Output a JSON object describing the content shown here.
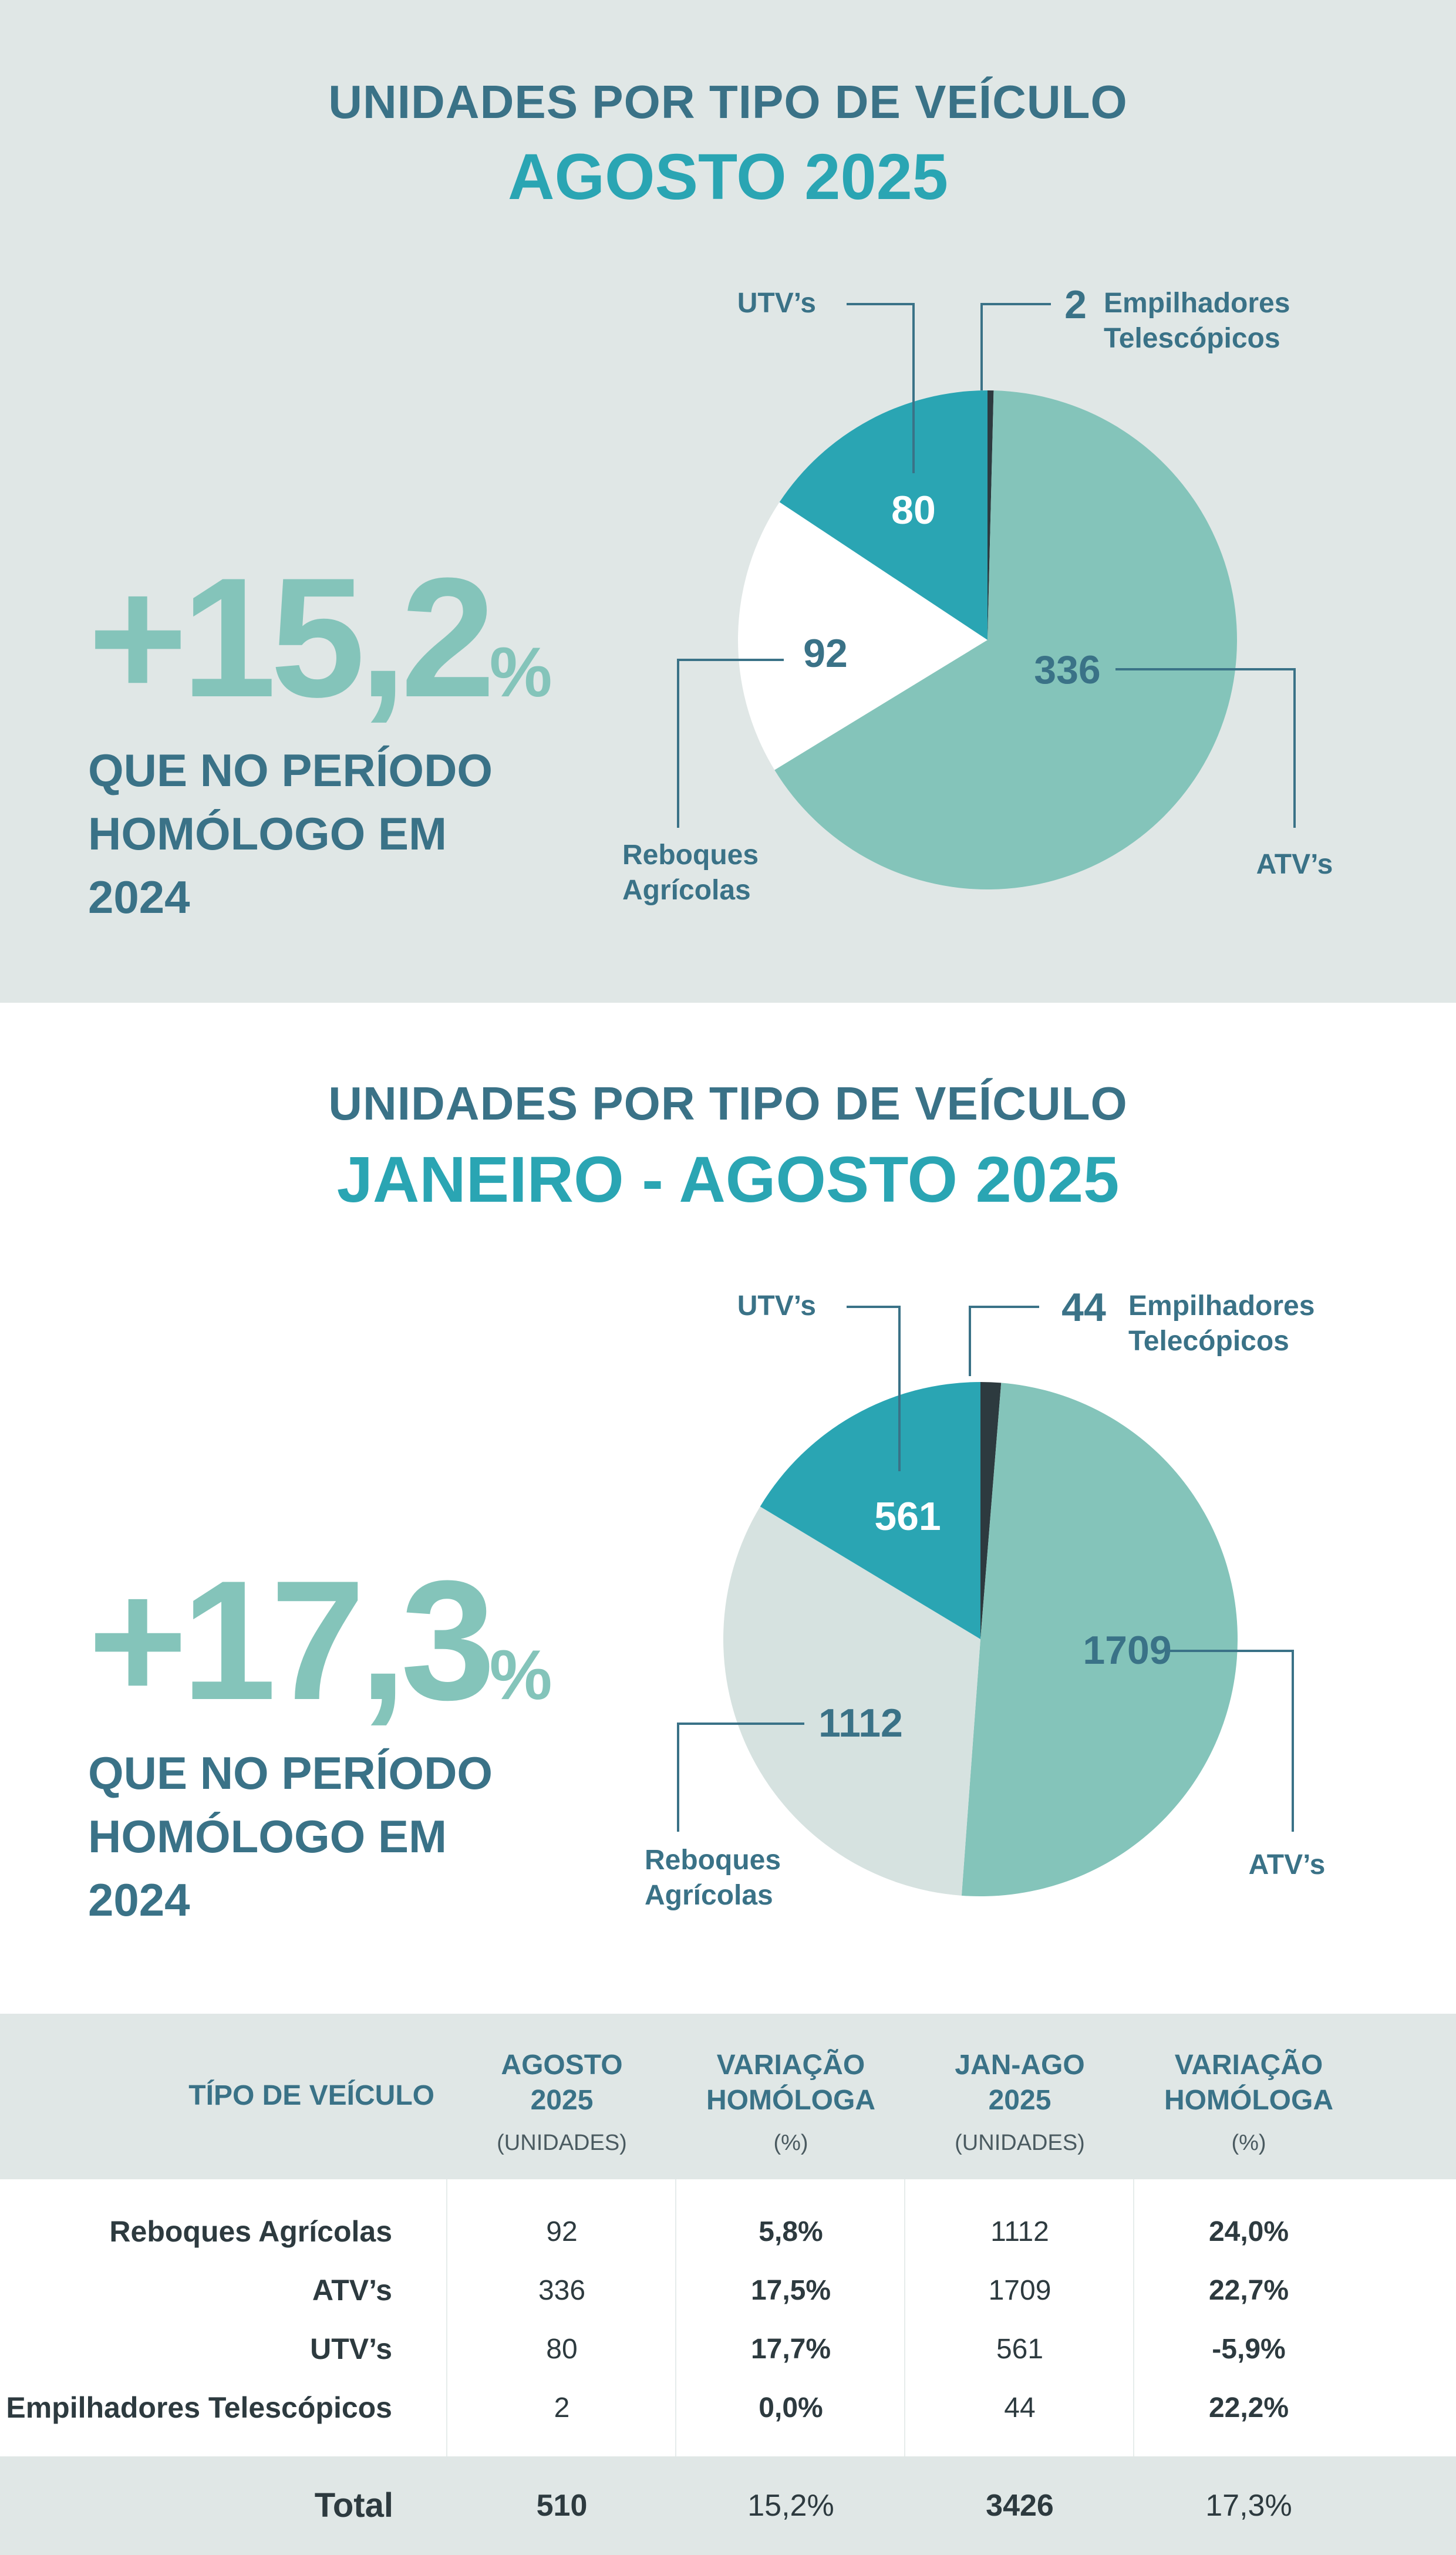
{
  "section1": {
    "title_line1": "UNIDADES POR TIPO DE VEÍCULO",
    "title_line2": "AGOSTO 2025",
    "growth_number": "+15,2",
    "growth_sign": "%",
    "growth_caption_l1": "QUE NO PERÍODO",
    "growth_caption_l2": "HOMÓLOGO EM",
    "growth_caption_l3": "2024"
  },
  "section2": {
    "title_line1": "UNIDADES POR TIPO DE VEÍCULO",
    "title_line2": "JANEIRO - AGOSTO 2025",
    "growth_number": "+17,3",
    "growth_sign": "%",
    "growth_caption_l1": "QUE NO PERÍODO",
    "growth_caption_l2": "HOMÓLOGO EM",
    "growth_caption_l3": "2024"
  },
  "chart_data": [
    {
      "type": "pie",
      "title": "AGOSTO 2025",
      "categories": [
        "ATV’s",
        "Reboques Agrícolas",
        "UTV’s",
        "Empilhadores Telescópicos"
      ],
      "values": [
        336,
        92,
        80,
        2
      ],
      "value_labels": [
        "336",
        "92",
        "80",
        "2"
      ],
      "label_lines": {
        "atv": [
          "ATV’s"
        ],
        "reboques": [
          "Reboques",
          "Agrícolas"
        ],
        "utv": [
          "UTV’s"
        ],
        "empilhadores": [
          "Empilhadores",
          "Telescópicos"
        ]
      },
      "colors": [
        "#84c4ba",
        "#ffffff",
        "#2aa5b3",
        "#2d3a3f"
      ],
      "value_colors": [
        "#3a7287",
        "#3a7287",
        "#ffffff",
        "#3a7287"
      ]
    },
    {
      "type": "pie",
      "title": "JANEIRO - AGOSTO 2025",
      "categories": [
        "ATV’s",
        "Reboques Agrícolas",
        "UTV’s",
        "Empilhadores Telecópicos"
      ],
      "values": [
        1709,
        1112,
        561,
        44
      ],
      "value_labels": [
        "1709",
        "1112",
        "561",
        "44"
      ],
      "label_lines": {
        "atv": [
          "ATV’s"
        ],
        "reboques": [
          "Reboques",
          "Agrícolas"
        ],
        "utv": [
          "UTV’s"
        ],
        "empilhadores": [
          "Empilhadores",
          "Telecópicos"
        ]
      },
      "colors": [
        "#84c4ba",
        "#d6e2e0",
        "#2aa5b3",
        "#2d3a3f"
      ],
      "value_colors": [
        "#3a7287",
        "#3a7287",
        "#ffffff",
        "#3a7287"
      ]
    },
    {
      "type": "table",
      "headers": {
        "type": "TÍPO DE VEÍCULO",
        "c1_l1": "AGOSTO",
        "c1_l2": "2025",
        "c1_unit": "(UNIDADES)",
        "c2_l1": "VARIAÇÃO",
        "c2_l2": "HOMÓLOGA",
        "c2_unit": "(%)",
        "c3_l1": "JAN-AGO",
        "c3_l2": "2025",
        "c3_unit": "(UNIDADES)",
        "c4_l1": "VARIAÇÃO",
        "c4_l2": "HOMÓLOGA",
        "c4_unit": "(%)"
      },
      "rows": [
        {
          "label": "Reboques Agrícolas",
          "ago": "92",
          "var_ago": "5,8%",
          "janago": "1112",
          "var_janago": "24,0%"
        },
        {
          "label": "ATV’s",
          "ago": "336",
          "var_ago": "17,5%",
          "janago": "1709",
          "var_janago": "22,7%"
        },
        {
          "label": "UTV’s",
          "ago": "80",
          "var_ago": "17,7%",
          "janago": "561",
          "var_janago": "-5,9%"
        },
        {
          "label": "Empilhadores Telescópicos",
          "ago": "2",
          "var_ago": "0,0%",
          "janago": "44",
          "var_janago": "22,2%"
        }
      ],
      "total": {
        "label": "Total",
        "ago": "510",
        "var_ago": "15,2%",
        "janago": "3426",
        "var_janago": "17,3%"
      }
    }
  ]
}
